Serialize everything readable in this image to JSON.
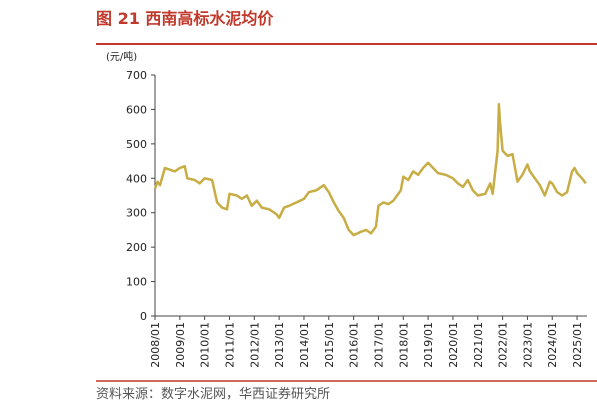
{
  "chart_data": {
    "type": "line",
    "title": "图 21 西南高标水泥均价",
    "y_label": "(元/吨)",
    "source": "资料来源：数字水泥网，华西证券研究所",
    "series": [
      {
        "color": "#c8ad45",
        "x": [
          2008.0,
          2008.1,
          2008.2,
          2008.4,
          2008.6,
          2008.8,
          2009.0,
          2009.2,
          2009.3,
          2009.6,
          2009.8,
          2010.0,
          2010.3,
          2010.5,
          2010.7,
          2010.9,
          2011.0,
          2011.3,
          2011.5,
          2011.7,
          2011.9,
          2012.1,
          2012.3,
          2012.6,
          2012.9,
          2013.0,
          2013.2,
          2013.4,
          2013.7,
          2014.0,
          2014.2,
          2014.5,
          2014.8,
          2015.0,
          2015.2,
          2015.4,
          2015.6,
          2015.8,
          2016.0,
          2016.3,
          2016.5,
          2016.7,
          2016.9,
          2017.0,
          2017.2,
          2017.4,
          2017.6,
          2017.8,
          2017.9,
          2018.0,
          2018.2,
          2018.4,
          2018.6,
          2018.8,
          2019.0,
          2019.2,
          2019.4,
          2019.7,
          2020.0,
          2020.2,
          2020.4,
          2020.6,
          2020.8,
          2021.0,
          2021.3,
          2021.5,
          2021.6,
          2021.8,
          2021.85,
          2021.9,
          2022.0,
          2022.2,
          2022.4,
          2022.6,
          2022.8,
          2023.0,
          2023.1,
          2023.3,
          2023.5,
          2023.7,
          2023.9,
          2024.0,
          2024.2,
          2024.4,
          2024.6,
          2024.8,
          2024.9,
          2025.0,
          2025.2,
          2025.35
        ],
        "values": [
          370,
          390,
          380,
          430,
          425,
          420,
          430,
          435,
          400,
          395,
          385,
          400,
          395,
          330,
          315,
          310,
          355,
          350,
          340,
          350,
          320,
          335,
          315,
          310,
          295,
          285,
          315,
          320,
          330,
          340,
          360,
          365,
          380,
          360,
          330,
          305,
          285,
          250,
          235,
          245,
          250,
          240,
          260,
          320,
          330,
          325,
          335,
          355,
          365,
          405,
          395,
          420,
          410,
          430,
          445,
          430,
          415,
          410,
          400,
          385,
          375,
          395,
          365,
          350,
          355,
          385,
          355,
          480,
          615,
          560,
          480,
          465,
          470,
          390,
          410,
          440,
          420,
          400,
          380,
          350,
          390,
          385,
          360,
          350,
          360,
          420,
          430,
          415,
          400,
          385
        ]
      }
    ],
    "xlim": [
      2008,
      2025.4
    ],
    "ylim": [
      0,
      700
    ],
    "yticks": [
      0,
      100,
      200,
      300,
      400,
      500,
      600,
      700
    ],
    "xticks": [
      {
        "value": 2008,
        "label": "2008/01"
      },
      {
        "value": 2009,
        "label": "2009/01"
      },
      {
        "value": 2010,
        "label": "2010/01"
      },
      {
        "value": 2011,
        "label": "2011/01"
      },
      {
        "value": 2012,
        "label": "2012/01"
      },
      {
        "value": 2013,
        "label": "2013/01"
      },
      {
        "value": 2014,
        "label": "2014/01"
      },
      {
        "value": 2015,
        "label": "2015/01"
      },
      {
        "value": 2016,
        "label": "2016/01"
      },
      {
        "value": 2017,
        "label": "2017/01"
      },
      {
        "value": 2018,
        "label": "2018/01"
      },
      {
        "value": 2019,
        "label": "2019/01"
      },
      {
        "value": 2020,
        "label": "2020/01"
      },
      {
        "value": 2021,
        "label": "2021/01"
      },
      {
        "value": 2022,
        "label": "2022/01"
      },
      {
        "value": 2023,
        "label": "2023/01"
      },
      {
        "value": 2024,
        "label": "2024/01"
      },
      {
        "value": 2025,
        "label": "2025/01"
      }
    ]
  }
}
